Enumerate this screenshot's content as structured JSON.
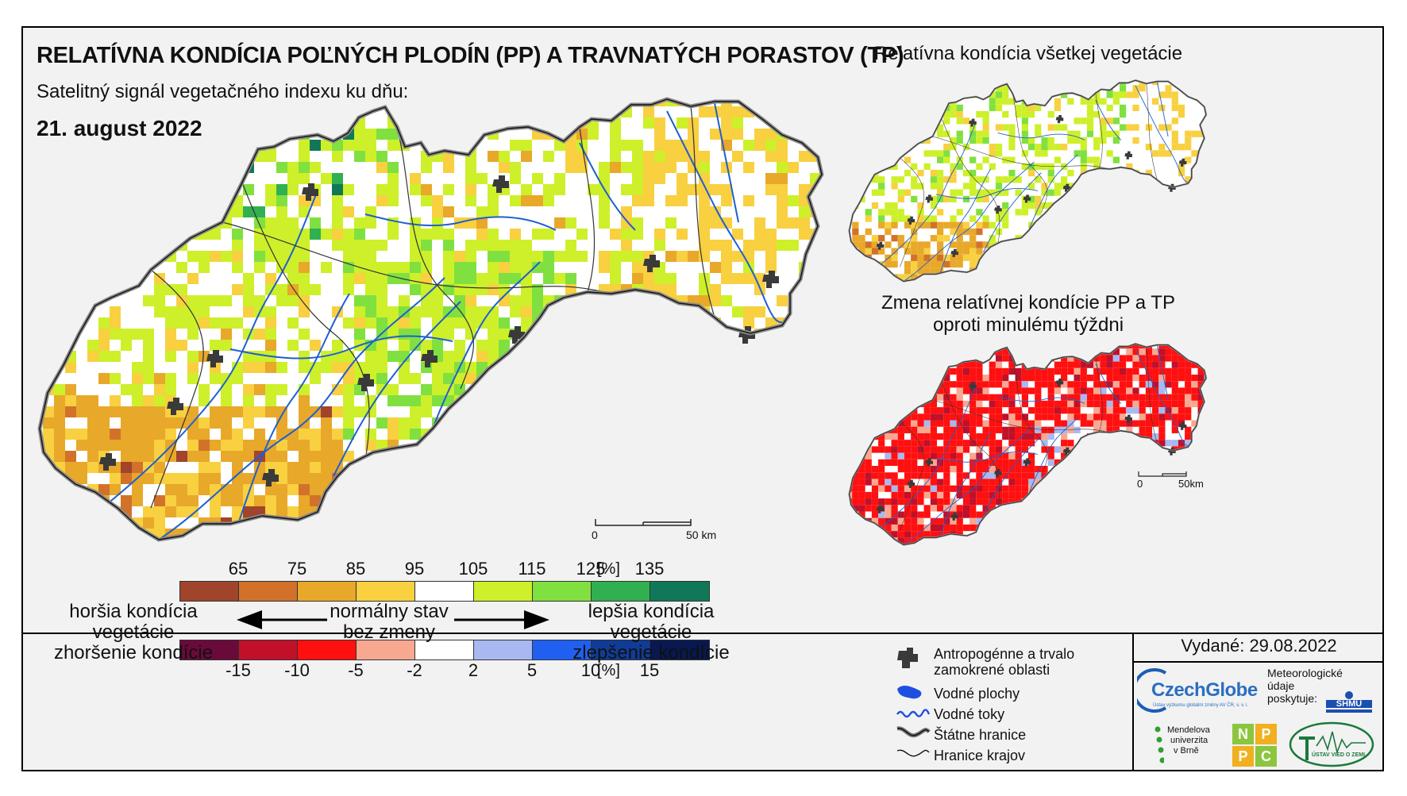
{
  "header": {
    "title": "RELATÍVNA KONDÍCIA POĽNÝCH PLODÍN (PP) A TRAVNATÝCH PORASTOV (TP)",
    "subtitle": "Satelitný signál vegetačného indexu ku dňu:",
    "date": "21. august 2022"
  },
  "side_maps": {
    "top_title": "Relatívna kondícia všetkej vegetácie",
    "bottom_title_line1": "Zmena relatívnej kondície PP a TP",
    "bottom_title_line2": "oproti minulému týždni"
  },
  "scalebars": {
    "main_start": "0",
    "main_end": "50 km",
    "small_start": "0",
    "small_end": "50km"
  },
  "legend_condition": {
    "unit": "[%]",
    "ticks": [
      "65",
      "75",
      "85",
      "95",
      "105",
      "115",
      "125",
      "135"
    ],
    "colors": [
      "#a0442c",
      "#d2722a",
      "#e8a82a",
      "#f8d040",
      "#ffffff",
      "#cdf02a",
      "#80e040",
      "#30b050",
      "#107858"
    ]
  },
  "legend_change": {
    "unit": "[%]",
    "ticks": [
      "-15",
      "-10",
      "-5",
      "-2",
      "2",
      "5",
      "10",
      "15"
    ],
    "colors": [
      "#6a0a3a",
      "#c0102a",
      "#ff1010",
      "#f8a890",
      "#ffffff",
      "#a8b8f0",
      "#2060f0",
      "#103c98",
      "#081850"
    ]
  },
  "captions": {
    "worse_line1": "horšia kondícia vegetácie",
    "worse_line2": "zhoršenie kondície",
    "normal_line1": "normálny stav",
    "normal_line2": "bez zmeny",
    "better_line1": "lepšia kondícia vegetácie",
    "better_line2": "zlepšenie kondície"
  },
  "map_legend": {
    "urban_line1": "Antropogénne a trvalo",
    "urban_line2": "zamokrené oblasti",
    "water_bodies": "Vodné plochy",
    "rivers": "Vodné toky",
    "state_border": "Štátne hranice",
    "region_border": "Hranice krajov"
  },
  "issued": "Vydané: 29.08.2022",
  "logos": {
    "czechglobe": "CzechGlobe",
    "czechglobe_sub": "Ústav výzkumu globální změny AV ČR, v. v. i.",
    "meteo_line1": "Meteorologické",
    "meteo_line2": "údaje",
    "meteo_line3": "poskytuje:",
    "shmu": "SHMÚ",
    "mendel_line1": "Mendelova",
    "mendel_line2": "univerzita",
    "mendel_line3": "v Brně",
    "nppc": [
      "N",
      "P",
      "P",
      "C"
    ],
    "uvz": "ÚSTAV VIED O ZEMI"
  },
  "colors": {
    "frame_bg": "#f2f2f2",
    "border": "#444444",
    "river": "#1f5fd0",
    "urban": "#3a3a3a"
  }
}
